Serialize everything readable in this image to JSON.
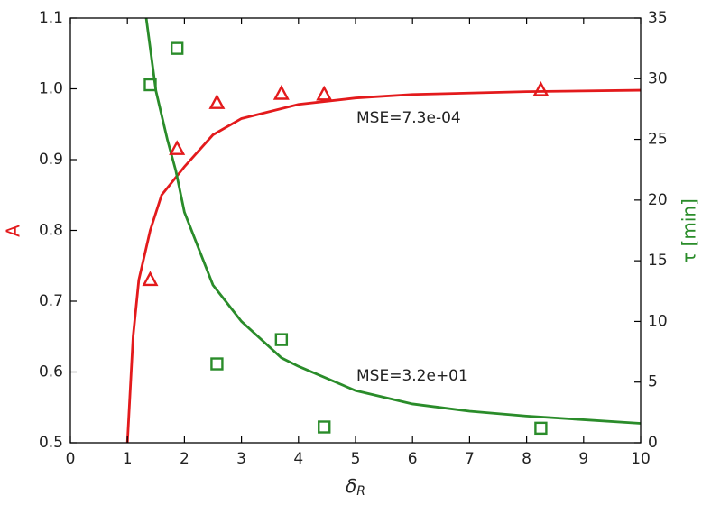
{
  "chart_data": {
    "type": "line",
    "xlabel": {
      "symbol": "δ",
      "subscript": "R"
    },
    "ylabel": "A",
    "ylabel_color": "#e31a1c",
    "y2label": "τ [min]",
    "y2label_color": "#2a8c2a",
    "xlim": [
      0,
      10
    ],
    "xticks": [
      0,
      1,
      2,
      3,
      4,
      5,
      6,
      7,
      8,
      9,
      10
    ],
    "ylim": [
      0.5,
      1.1
    ],
    "yticks": [
      0.5,
      0.6,
      0.7,
      0.8,
      0.9,
      {
        "value": 1.0,
        "label": "1.0"
      },
      1.1
    ],
    "y2lim": [
      0,
      35
    ],
    "y2ticks": [
      0,
      5,
      10,
      15,
      20,
      25,
      30,
      35
    ],
    "annotations": [
      "MSE=7.3e-04",
      "MSE=3.2e+01"
    ],
    "series": [
      {
        "mode": "lines",
        "color": "#e31a1c",
        "axis": "y",
        "x": [
          1,
          1.1,
          1.2,
          1.4,
          1.6,
          2,
          2.5,
          3,
          4,
          5,
          6,
          8,
          10
        ],
        "values": [
          0.5,
          0.65,
          0.73,
          0.8,
          0.85,
          0.89,
          0.935,
          0.958,
          0.978,
          0.987,
          0.992,
          0.996,
          0.998
        ]
      },
      {
        "mode": "lines",
        "color": "#2a8c2a",
        "axis": "y2",
        "x": [
          1.33,
          1.5,
          1.7,
          1.85,
          2,
          2.5,
          3,
          3.7,
          4,
          5,
          6,
          7,
          8,
          10
        ],
        "values": [
          35,
          29,
          25,
          22.4,
          19,
          13,
          10,
          7,
          6.3,
          4.3,
          3.2,
          2.6,
          2.2,
          1.6
        ]
      },
      {
        "mode": "markers",
        "marker": "triangle",
        "color": "#e31a1c",
        "axis": "y",
        "x": [
          1.4,
          1.87,
          2.57,
          3.7,
          4.45,
          8.25
        ],
        "values": [
          0.73,
          0.915,
          0.98,
          0.993,
          0.992,
          0.998
        ]
      },
      {
        "mode": "markers",
        "marker": "square",
        "color": "#2a8c2a",
        "axis": "y2",
        "x": [
          1.4,
          1.87,
          2.57,
          3.7,
          4.45,
          8.25
        ],
        "values": [
          29.5,
          32.5,
          6.5,
          8.5,
          1.3,
          1.2
        ]
      }
    ]
  }
}
